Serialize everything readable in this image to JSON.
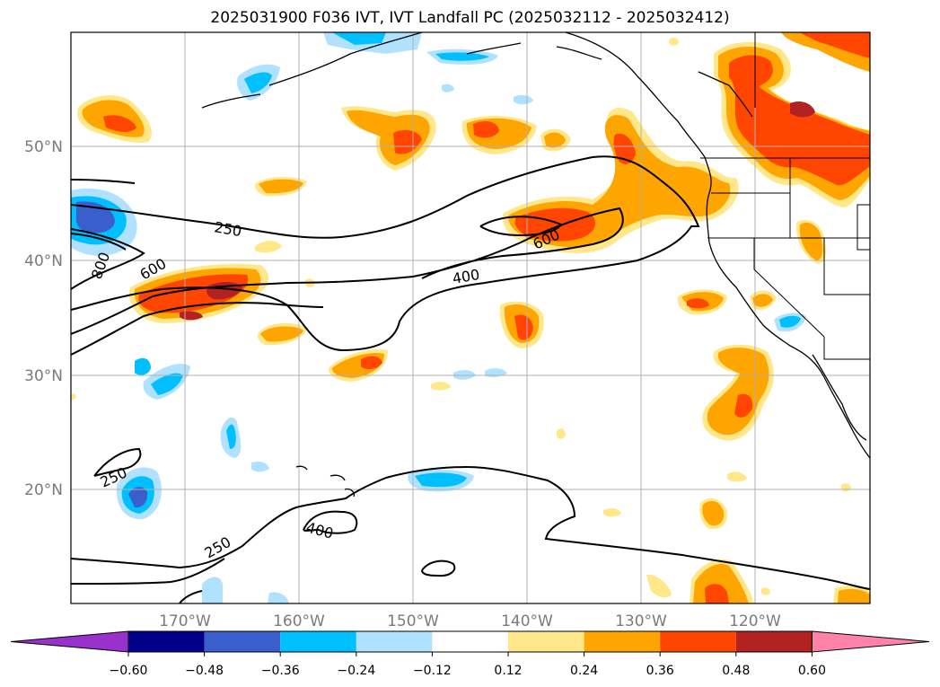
{
  "title": "2025031900 F036 IVT, IVT Landfall PC (2025032112 - 2025032412)",
  "axes": {
    "lat_labels": [
      "50°N",
      "40°N",
      "30°N",
      "20°N"
    ],
    "lon_labels": [
      "170°W",
      "160°W",
      "150°W",
      "140°W",
      "130°W",
      "120°W"
    ]
  },
  "contour_labels": [
    "250",
    "600",
    "800",
    "400",
    "600",
    "400",
    "250",
    "250"
  ],
  "colorbar": {
    "ticks": [
      "−0.60",
      "−0.48",
      "−0.36",
      "−0.24",
      "−0.12",
      "0.12",
      "0.24",
      "0.36",
      "0.48",
      "0.60"
    ],
    "colors": [
      "#9932cc",
      "#00008b",
      "#3a5fcd",
      "#00bfff",
      "#b0e2ff",
      "#ffffff",
      "#ffe78a",
      "#ffa500",
      "#ff4500",
      "#b22222",
      "#ff82ab"
    ]
  }
}
